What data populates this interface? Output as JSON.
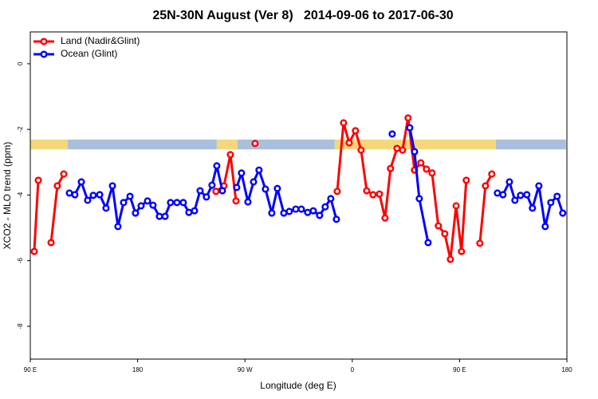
{
  "chart_data": {
    "type": "line",
    "title": "25N-30N August (Ver 8)   2014-09-06 to 2017-06-30",
    "x_label": "Longitude (deg E)",
    "y_label": "XCO2 - MLO trend (ppm)",
    "xlim": [
      90,
      540
    ],
    "ylim": [
      -9,
      0.97
    ],
    "xticks": [
      {
        "value": 90,
        "label": "90 E"
      },
      180,
      {
        "value": 270,
        "label": "90 W"
      },
      {
        "value": 360,
        "label": "0"
      },
      {
        "value": 450,
        "label": "90 E"
      },
      {
        "value": 540,
        "label": "180"
      }
    ],
    "yticks": [
      0,
      -2,
      -4,
      -6,
      -8
    ],
    "legend": "top-left",
    "band": {
      "ylim": [
        -2.61,
        -2.31
      ],
      "segments": [
        {
          "from": 90,
          "to": 121.4,
          "color": "#f5d77a"
        },
        {
          "from": 121.4,
          "to": 246.4,
          "color": "#a9bfdc"
        },
        {
          "from": 246.4,
          "to": 263.8,
          "color": "#f5d77a"
        },
        {
          "from": 263.8,
          "to": 345.3,
          "color": "#a9bfdc"
        },
        {
          "from": 345.3,
          "to": 480.4,
          "color": "#f5d77a"
        },
        {
          "from": 480.4,
          "to": 539.2,
          "color": "#a9bfdc"
        }
      ]
    },
    "series": [
      {
        "name": "Land (Nadir&Glint)",
        "color": "#ff0000",
        "x": [
          93.3,
          96.7,
          null,
          107.4,
          112.7,
          118.1,
          null,
          245.7,
          252.4,
          257.8,
          262.5,
          null,
          278.5,
          null,
          347.4,
          352.7,
          357.4,
          362.7,
          367.4,
          372.1,
          377.4,
          382.8,
          387.5,
          392.1,
          397.5,
          402.2,
          406.8,
          412.2,
          417.5,
          422.2,
          426.9,
          432.2,
          437.6,
          442.3,
          447.1,
          451.6,
          455.6,
          null,
          467.0,
          471.7,
          477.0
        ],
        "values": [
          -5.72,
          -3.55,
          null,
          -5.45,
          -3.72,
          -3.36,
          null,
          -3.89,
          -3.72,
          -2.77,
          -4.18,
          null,
          -2.43,
          null,
          -3.89,
          -1.8,
          -2.41,
          -2.04,
          -2.63,
          -3.87,
          -3.99,
          -3.97,
          -4.7,
          -3.19,
          -2.58,
          -2.63,
          -1.65,
          -3.24,
          -3.02,
          -3.21,
          -3.33,
          -4.94,
          -5.18,
          -5.96,
          -4.33,
          -5.72,
          -3.55,
          null,
          -5.47,
          -3.72,
          -3.36
        ]
      },
      {
        "name": "Ocean (Glint)",
        "color": "#0000ff",
        "x": [
          122.8,
          127.4,
          132.8,
          138.1,
          142.8,
          148.2,
          153.5,
          158.9,
          163.5,
          168.2,
          173.6,
          178.2,
          182.9,
          188.3,
          192.9,
          198.3,
          203.0,
          207.6,
          213.0,
          218.3,
          223.0,
          227.7,
          232.4,
          237.7,
          242.4,
          246.4,
          251.1,
          null,
          263.1,
          267.1,
          272.5,
          277.2,
          281.8,
          287.2,
          292.5,
          297.2,
          302.6,
          307.2,
          312.6,
          317.3,
          322.6,
          327.3,
          332.6,
          337.3,
          342.0,
          346.7,
          null,
          393.5,
          null,
          408.2,
          412.2,
          416.2,
          423.6,
          null,
          481.7,
          486.4,
          491.8,
          496.4,
          501.1,
          506.4,
          511.1,
          516.5,
          521.8,
          526.5,
          531.8,
          536.5
        ],
        "values": [
          -3.94,
          -3.99,
          -3.6,
          -4.16,
          -4.01,
          -3.99,
          -4.4,
          -3.72,
          -4.96,
          -4.23,
          -4.04,
          -4.55,
          -4.33,
          -4.18,
          -4.31,
          -4.65,
          -4.65,
          -4.23,
          -4.23,
          -4.23,
          -4.53,
          -4.48,
          -3.87,
          -4.06,
          -3.7,
          -3.11,
          -3.87,
          null,
          -3.77,
          -3.33,
          -4.21,
          -3.6,
          -3.24,
          -3.82,
          -4.55,
          -3.8,
          -4.55,
          -4.5,
          -4.43,
          -4.43,
          -4.53,
          -4.48,
          -4.62,
          -4.36,
          -4.11,
          -4.74,
          null,
          -2.14,
          null,
          -1.95,
          -2.68,
          -4.11,
          -5.45,
          null,
          -3.94,
          -3.99,
          -3.6,
          -4.16,
          -4.01,
          -3.99,
          -4.4,
          -3.72,
          -4.96,
          -4.23,
          -4.04,
          -4.55
        ]
      }
    ]
  }
}
